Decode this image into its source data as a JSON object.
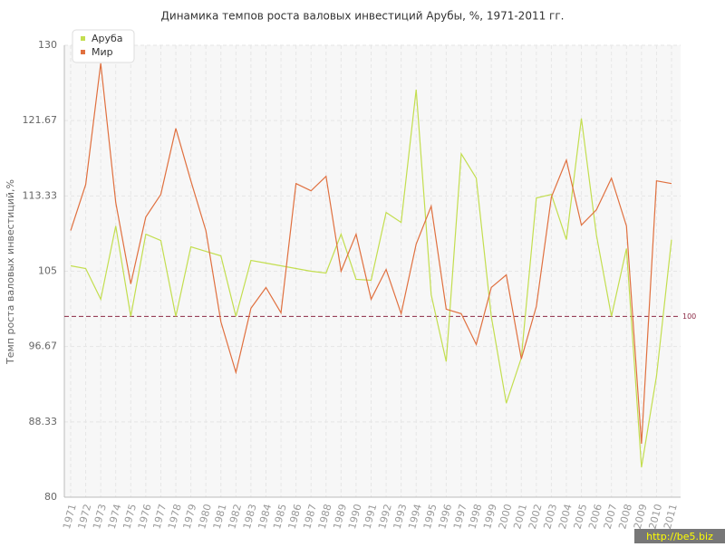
{
  "chart_data": {
    "type": "line",
    "title": "Динамика темпов роста валовых инвестиций Арубы, %, 1971-2011 гг.",
    "y_label": "Темп роста валовых инвестиций,%",
    "categories": [
      "1971",
      "1972",
      "1973",
      "1974",
      "1975",
      "1976",
      "1977",
      "1978",
      "1979",
      "1980",
      "1981",
      "1982",
      "1983",
      "1984",
      "1985",
      "1986",
      "1987",
      "1988",
      "1989",
      "1990",
      "1991",
      "1992",
      "1993",
      "1994",
      "1995",
      "1996",
      "1997",
      "1998",
      "1999",
      "2000",
      "2001",
      "2002",
      "2003",
      "2004",
      "2005",
      "2006",
      "2007",
      "2008",
      "2009",
      "2010",
      "2011"
    ],
    "series": [
      {
        "name": "Аруба",
        "color": "#c3de4f",
        "values": [
          105.6,
          105.3,
          101.9,
          110.0,
          100,
          109.1,
          108.4,
          100,
          107.7,
          107.2,
          106.7,
          100,
          106.2,
          105.9,
          105.6,
          105.3,
          105.0,
          104.8,
          109.1,
          104.1,
          104.0,
          111.5,
          110.4,
          125.1,
          102.4,
          95.0,
          118.0,
          115.3,
          100,
          90.4,
          95.4,
          113.1,
          113.5,
          108.5,
          121.9,
          109.0,
          100,
          107.5,
          83.3,
          93.4,
          108.5
        ]
      },
      {
        "name": "Мир",
        "color": "#e0703f",
        "values": [
          109.5,
          114.6,
          128.0,
          112.6,
          103.6,
          111.0,
          113.5,
          120.8,
          115.0,
          109.5,
          99.4,
          93.8,
          100.9,
          103.2,
          100.4,
          114.7,
          113.9,
          115.5,
          105.0,
          109.1,
          101.9,
          105.2,
          100.3,
          108.0,
          112.2,
          100.8,
          100.3,
          96.9,
          103.2,
          104.6,
          95.3,
          101.1,
          113.2,
          117.3,
          110.1,
          111.8,
          115.3,
          110.0,
          85.9,
          115.0,
          114.7
        ]
      }
    ],
    "ylim": [
      80,
      130
    ],
    "yticks": [
      80,
      88.33,
      96.67,
      105,
      113.33,
      121.67,
      130
    ],
    "reference_line": 100,
    "reference_color": "#8b2a45",
    "grid": true,
    "legend": "upper left",
    "watermark": "http://be5.biz"
  }
}
